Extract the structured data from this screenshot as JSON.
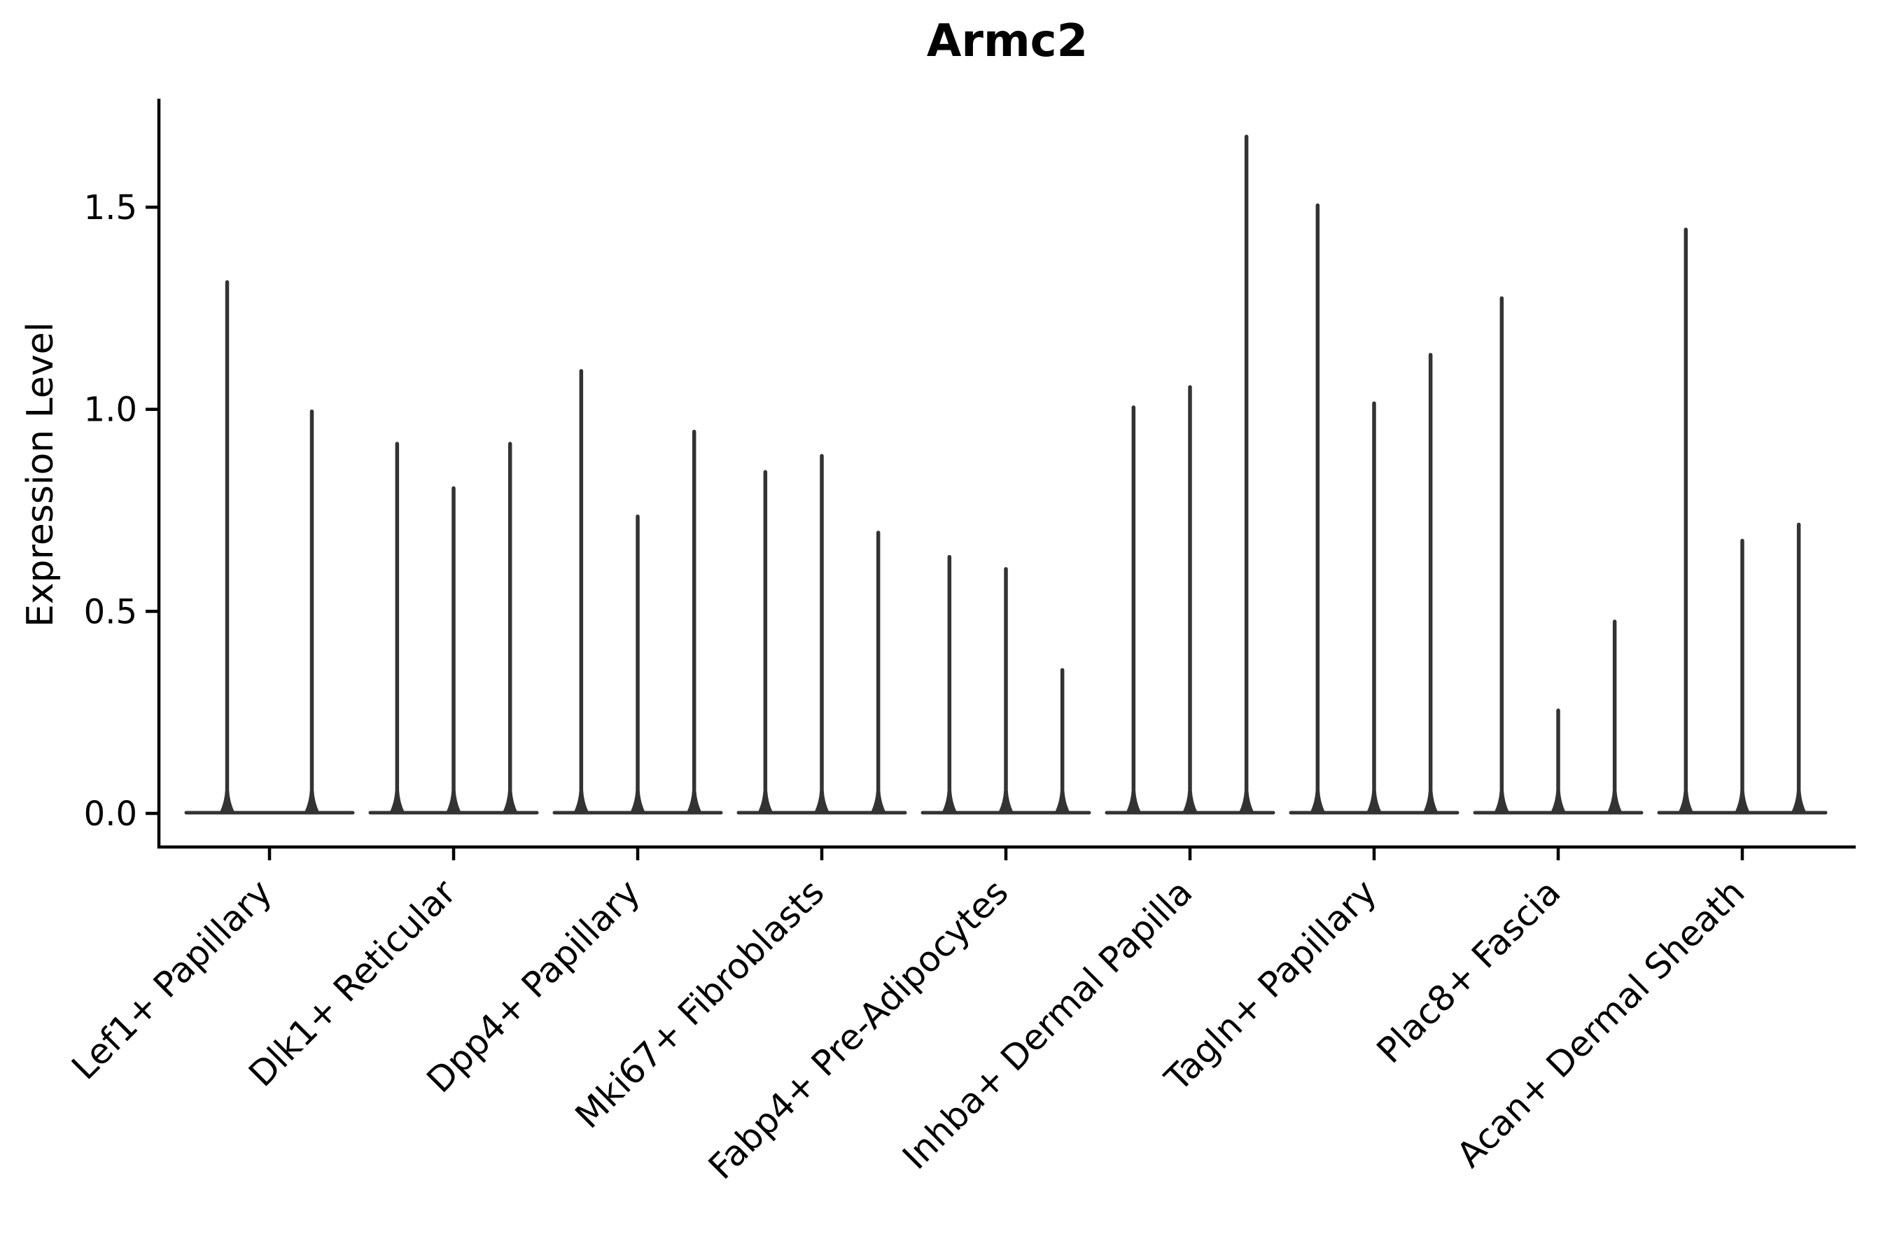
{
  "title": "Armc2",
  "chart_data": {
    "type": "violin",
    "title": "Armc2",
    "ylabel": "Expression Level",
    "xlabel": "",
    "ylim": [
      0,
      1.77
    ],
    "yticks": [
      0.0,
      0.5,
      1.0,
      1.5
    ],
    "ytick_labels": [
      "0.0",
      "0.5",
      "1.0",
      "1.5"
    ],
    "grid": false,
    "legend": null,
    "background_color": "#ffffff",
    "violin_color": "#333333",
    "axis_color": "#000000",
    "categories": [
      "Lef1+ Papillary",
      "Dlk1+ Reticular",
      "Dpp4+ Papillary",
      "Mki67+ Fibroblasts",
      "Fabp4+ Pre-Adipocytes",
      "Inhba+ Dermal Papilla",
      "Tagln+ Papillary",
      "Plac8+ Fascia",
      "Acan+ Dermal Sheath"
    ],
    "series": [
      {
        "category": "Lef1+ Papillary",
        "violin_max_values": [
          1.32,
          1.0
        ]
      },
      {
        "category": "Dlk1+ Reticular",
        "violin_max_values": [
          0.92,
          0.81,
          0.92
        ]
      },
      {
        "category": "Dpp4+ Papillary",
        "violin_max_values": [
          1.1,
          0.74,
          0.95
        ]
      },
      {
        "category": "Mki67+ Fibroblasts",
        "violin_max_values": [
          0.85,
          0.89,
          0.7
        ]
      },
      {
        "category": "Fabp4+ Pre-Adipocytes",
        "violin_max_values": [
          0.64,
          0.61,
          0.36
        ]
      },
      {
        "category": "Inhba+ Dermal Papilla",
        "violin_max_values": [
          1.01,
          1.06,
          1.68
        ]
      },
      {
        "category": "Tagln+ Papillary",
        "violin_max_values": [
          1.51,
          1.02,
          1.14
        ]
      },
      {
        "category": "Plac8+ Fascia",
        "violin_max_values": [
          1.28,
          0.26,
          0.48
        ]
      },
      {
        "category": "Acan+ Dermal Sheath",
        "violin_max_values": [
          1.45,
          0.68,
          0.72
        ]
      }
    ],
    "description": "Each violin collapses to a thin spike: bulk of cells at 0 expression with a narrow tail up to the max expression value."
  }
}
